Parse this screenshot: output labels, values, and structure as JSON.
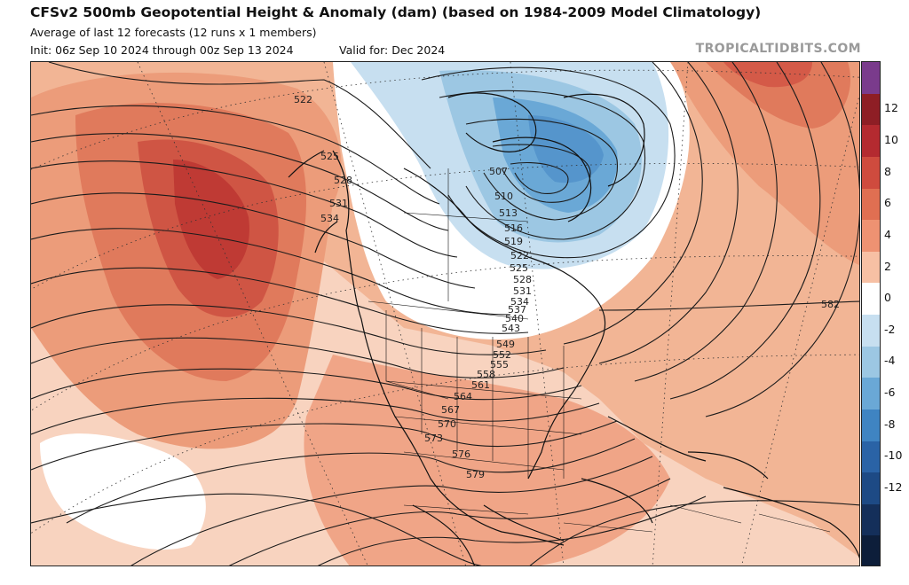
{
  "header": {
    "title": "CFSv2 500mb Geopotential Height & Anomaly (dam) (based on 1984-2009 Model Climatology)",
    "subtitle": "Average of last 12 forecasts (12 runs x 1 members)",
    "init": "Init: 06z Sep 10 2024 through 00z Sep 13 2024",
    "valid": "Valid for: Dec 2024",
    "brand": "TROPICALTIDBITS.COM"
  },
  "colorbar": {
    "ticks": [
      "12",
      "10",
      "8",
      "6",
      "4",
      "2",
      "0",
      "-2",
      "-4",
      "-6",
      "-8",
      "-10",
      "-12"
    ],
    "colors": [
      "#7a3b8c",
      "#8e1e25",
      "#b42a30",
      "#cf4b3e",
      "#e06f52",
      "#ee9272",
      "#f7c0a4",
      "#ffffff",
      "#c7dff0",
      "#9cc7e3",
      "#6aa8d6",
      "#3f84c2",
      "#2a63a6",
      "#1d4a85",
      "#142f5a",
      "#0d1e3a"
    ]
  },
  "map": {
    "contour_labels": [
      "522",
      "525",
      "528",
      "531",
      "534",
      "507",
      "510",
      "513",
      "516",
      "519",
      "522",
      "525",
      "528",
      "531",
      "534",
      "537",
      "540",
      "543",
      "549",
      "552",
      "555",
      "558",
      "561",
      "564",
      "567",
      "570",
      "573",
      "576",
      "579",
      "582"
    ]
  }
}
